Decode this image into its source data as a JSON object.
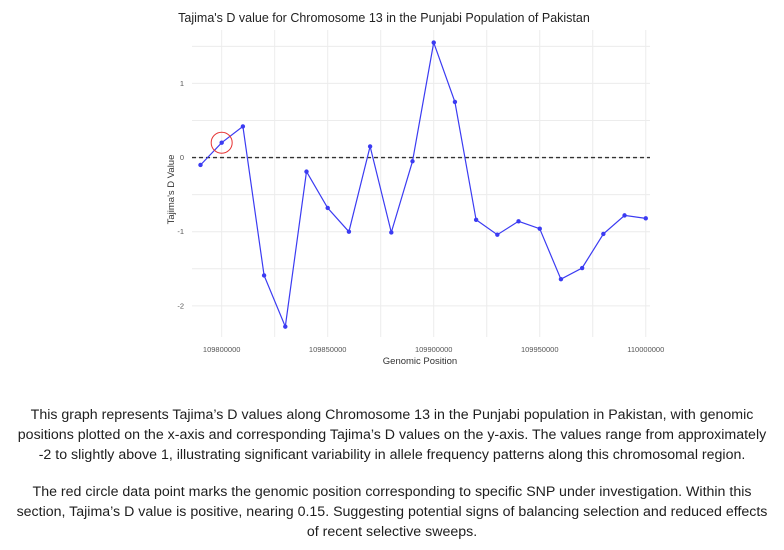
{
  "chart_data": {
    "type": "line",
    "title": "Tajima's D value for Chromosome 13 in the Punjabi Population of Pakistan",
    "xlabel": "Genomic Position",
    "ylabel": "Tajima's D Value",
    "xlim": [
      109786000,
      110002000
    ],
    "ylim": [
      -2.42,
      1.72
    ],
    "xticks": [
      109800000,
      109850000,
      109900000,
      109950000,
      110000000
    ],
    "xtick_labels": [
      "109800000",
      "109850000",
      "109900000",
      "109950000",
      "110000000"
    ],
    "yticks": [
      1,
      0,
      -1,
      -2
    ],
    "ytick_labels": [
      "1",
      "0",
      "-1",
      "-2"
    ],
    "reference_line": {
      "y": 0,
      "style": "dashed"
    },
    "grid": true,
    "series": [
      {
        "color": "#3b3bf2",
        "x": [
          109790000,
          109800000,
          109810000,
          109820000,
          109830000,
          109840000,
          109850000,
          109860000,
          109870000,
          109880000,
          109890000,
          109900000,
          109910000,
          109920000,
          109930000,
          109940000,
          109950000,
          109960000,
          109970000,
          109980000,
          109990000,
          110000000
        ],
        "y": [
          -0.1,
          0.2,
          0.42,
          -1.59,
          -2.28,
          -0.19,
          -0.68,
          -1.0,
          0.15,
          -1.01,
          -0.05,
          1.55,
          0.75,
          -0.84,
          -1.04,
          -0.86,
          -0.96,
          -1.64,
          -1.49,
          -1.03,
          -0.78,
          -0.82
        ]
      }
    ],
    "highlight": {
      "x": 109800000,
      "y": 0.2,
      "color": "#e63535"
    }
  },
  "caption": {
    "paragraph_1": [
      "This graph represents Tajima’s D values along Chromosome 13 in the Punjabi population in Pakistan, with genomic",
      "positions plotted on the x-axis and corresponding Tajima’s D values on the y-axis. The values range from approximately",
      "-2 to slightly above 1, illustrating significant variability in allele frequency patterns along this chromosomal region."
    ],
    "paragraph_2": [
      "The red circle data point marks the genomic position corresponding to specific SNP under investigation. Within this",
      "section, Tajima’s D value is positive, nearing 0.15. Suggesting potential signs of balancing selection and reduced effects",
      "of recent selective sweeps."
    ]
  }
}
